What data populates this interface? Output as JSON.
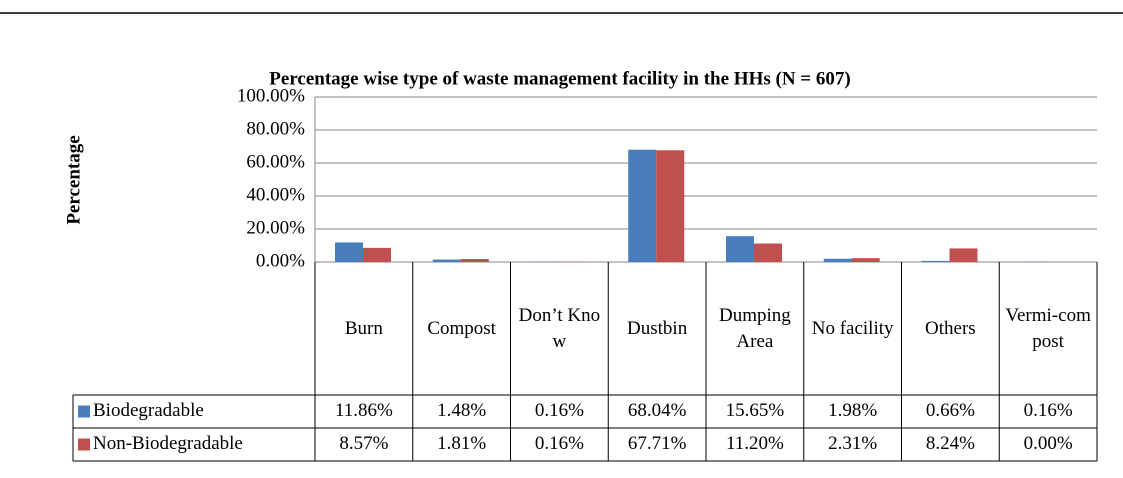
{
  "chart_data": {
    "type": "bar",
    "title": "Percentage wise type of waste management facility in the HHs (N = 607)",
    "y_label": "Percentage",
    "categories": [
      "Burn",
      "Compost",
      "Don’t Know",
      "Dustbin",
      "Dumping Area",
      "No facility",
      "Others",
      "Vermi-compost"
    ],
    "series": [
      {
        "name": "Biodegradable",
        "color": "#4a7ebb",
        "values": [
          11.86,
          1.48,
          0.16,
          68.04,
          15.65,
          1.98,
          0.66,
          0.16
        ],
        "value_labels": [
          "11.86%",
          "1.48%",
          "0.16%",
          "68.04%",
          "15.65%",
          "1.98%",
          "0.66%",
          "0.16%"
        ]
      },
      {
        "name": "Non-Biodegradable",
        "color": "#c0504d",
        "values": [
          8.57,
          1.81,
          0.16,
          67.71,
          11.2,
          2.31,
          8.24,
          0.0
        ],
        "value_labels": [
          "8.57%",
          "1.81%",
          "0.16%",
          "67.71%",
          "11.20%",
          "2.31%",
          "8.24%",
          "0.00%"
        ]
      }
    ],
    "ylim": [
      0,
      100
    ],
    "yticks": [
      {
        "value": 0,
        "label": "0.00%"
      },
      {
        "value": 20,
        "label": "20.00%"
      },
      {
        "value": 40,
        "label": "40.00%"
      },
      {
        "value": 60,
        "label": "60.00%"
      },
      {
        "value": 80,
        "label": "80.00%"
      },
      {
        "value": 100,
        "label": "100.00%"
      }
    ],
    "grid": true
  }
}
